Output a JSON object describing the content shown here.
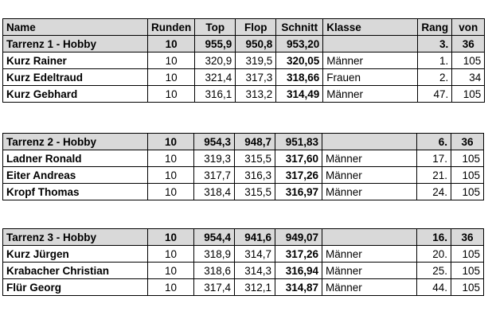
{
  "header": {
    "name": "Name",
    "runden": "Runden",
    "top": "Top",
    "flop": "Flop",
    "schnitt": "Schnitt",
    "klasse": "Klasse",
    "rang": "Rang",
    "von": "von"
  },
  "groups": [
    {
      "team": {
        "name": "Tarrenz 1 - Hobby",
        "runden": "10",
        "top": "955,9",
        "flop": "950,8",
        "schnitt": "953,20",
        "klasse": "",
        "rang": "3.",
        "von": "36"
      },
      "rows": [
        {
          "name": "Kurz Rainer",
          "runden": "10",
          "top": "320,9",
          "flop": "319,5",
          "schnitt": "320,05",
          "klasse": "Männer",
          "rang": "1.",
          "von": "105"
        },
        {
          "name": "Kurz Edeltraud",
          "runden": "10",
          "top": "321,4",
          "flop": "317,3",
          "schnitt": "318,66",
          "klasse": "Frauen",
          "rang": "2.",
          "von": "34"
        },
        {
          "name": "Kurz Gebhard",
          "runden": "10",
          "top": "316,1",
          "flop": "313,2",
          "schnitt": "314,49",
          "klasse": "Männer",
          "rang": "47.",
          "von": "105"
        }
      ]
    },
    {
      "team": {
        "name": "Tarrenz 2 - Hobby",
        "runden": "10",
        "top": "954,3",
        "flop": "948,7",
        "schnitt": "951,83",
        "klasse": "",
        "rang": "6.",
        "von": "36"
      },
      "rows": [
        {
          "name": "Ladner Ronald",
          "runden": "10",
          "top": "319,3",
          "flop": "315,5",
          "schnitt": "317,60",
          "klasse": "Männer",
          "rang": "17.",
          "von": "105"
        },
        {
          "name": "Eiter Andreas",
          "runden": "10",
          "top": "317,7",
          "flop": "316,3",
          "schnitt": "317,26",
          "klasse": "Männer",
          "rang": "21.",
          "von": "105"
        },
        {
          "name": "Kropf Thomas",
          "runden": "10",
          "top": "318,4",
          "flop": "315,5",
          "schnitt": "316,97",
          "klasse": "Männer",
          "rang": "24.",
          "von": "105"
        }
      ]
    },
    {
      "team": {
        "name": "Tarrenz 3 - Hobby",
        "runden": "10",
        "top": "954,4",
        "flop": "941,6",
        "schnitt": "949,07",
        "klasse": "",
        "rang": "16.",
        "von": "36"
      },
      "rows": [
        {
          "name": "Kurz Jürgen",
          "runden": "10",
          "top": "318,9",
          "flop": "314,7",
          "schnitt": "317,26",
          "klasse": "Männer",
          "rang": "20.",
          "von": "105"
        },
        {
          "name": "Krabacher Christian",
          "runden": "10",
          "top": "318,6",
          "flop": "314,3",
          "schnitt": "316,94",
          "klasse": "Männer",
          "rang": "25.",
          "von": "105"
        },
        {
          "name": "Flür Georg",
          "runden": "10",
          "top": "317,4",
          "flop": "312,1",
          "schnitt": "314,87",
          "klasse": "Männer",
          "rang": "44.",
          "von": "105"
        }
      ]
    }
  ]
}
